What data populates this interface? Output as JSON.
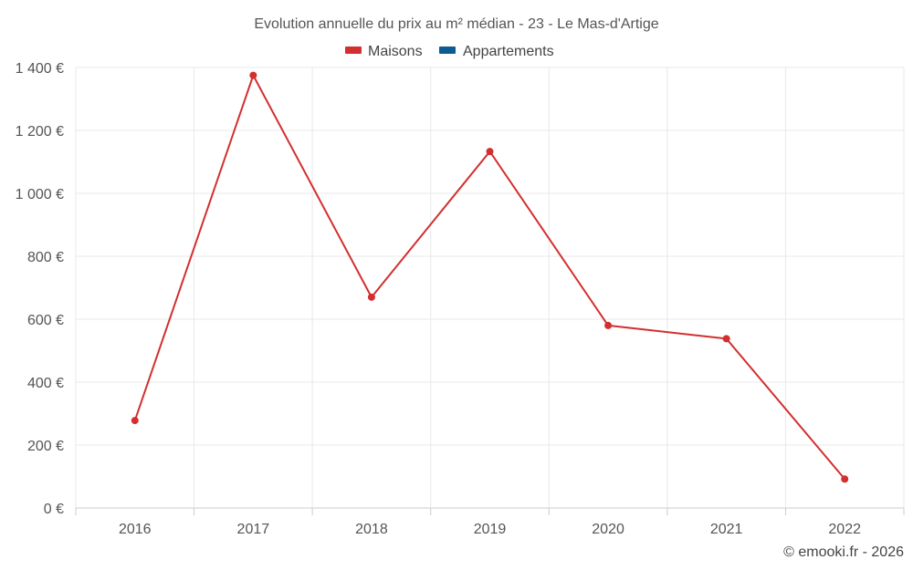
{
  "chart_data": {
    "type": "line",
    "title": "Evolution annuelle du prix au m² médian - 23 - Le Mas-d'Artige",
    "categories": [
      "2016",
      "2017",
      "2018",
      "2019",
      "2020",
      "2021",
      "2022"
    ],
    "series": [
      {
        "name": "Maisons",
        "color": "#d32f2f",
        "values": [
          278,
          1375,
          670,
          1133,
          580,
          538,
          92
        ]
      },
      {
        "name": "Appartements",
        "color": "#0d5c91",
        "values": [
          null,
          null,
          null,
          null,
          null,
          null,
          null
        ]
      }
    ],
    "ylim": [
      0,
      1400
    ],
    "y_ticks": [
      0,
      200,
      400,
      600,
      800,
      1000,
      1200,
      1400
    ],
    "y_tick_labels": [
      "0 €",
      "200 €",
      "400 €",
      "600 €",
      "800 €",
      "1 000 €",
      "1 200 €",
      "1 400 €"
    ],
    "grid": true,
    "legend_position": "top-center",
    "xlabel": "",
    "ylabel": ""
  },
  "credit": "© emooki.fr - 2026"
}
